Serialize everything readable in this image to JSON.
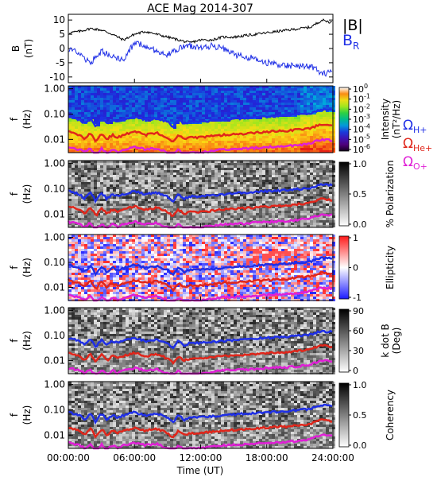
{
  "title": "ACE Mag 2014-307",
  "chart_data": [
    {
      "type": "line",
      "ylabel": "B",
      "yunit": "(nT)",
      "ylim": [
        -12,
        12
      ],
      "yticks": [
        "10",
        "5",
        "0",
        "-5",
        "-10"
      ],
      "yticks_values": [
        10,
        5,
        0,
        -5,
        -10
      ],
      "x_hours": [
        0,
        1,
        2,
        3,
        4,
        5,
        6,
        7,
        8,
        9,
        10,
        11,
        12,
        13,
        14,
        15,
        16,
        17,
        18,
        19,
        20,
        21,
        22,
        23,
        24
      ],
      "series": [
        {
          "name": "|B|",
          "color": "#000000",
          "values": [
            5.5,
            6,
            7,
            6.5,
            5,
            3,
            5,
            6,
            5,
            4,
            3,
            2,
            3,
            3,
            4,
            4,
            4.5,
            5,
            5.5,
            6,
            6.5,
            7,
            7.5,
            10,
            9
          ]
        },
        {
          "name": "B",
          "name_sub": "R",
          "color": "#1f2fe6",
          "values": [
            0,
            -2,
            -5,
            -1,
            -3,
            -4,
            2,
            1,
            -1,
            -2,
            0,
            1,
            0,
            1,
            0,
            -2,
            -3,
            -3.5,
            -5,
            -5.5,
            -6,
            -6.5,
            -6,
            -9,
            -8
          ]
        }
      ],
      "legend": [
        {
          "text": "|B|",
          "sub": "",
          "color": "#000000"
        },
        {
          "text": "B",
          "sub": "R",
          "color": "#1f2fe6"
        }
      ]
    },
    {
      "type": "heatmap",
      "ylabel": "f",
      "yunit": "(Hz)",
      "yticks": [
        "1.00",
        "0.10",
        "0.01"
      ],
      "cbar_type": "rainbow",
      "cbar_label": "Intensity",
      "cbar_label_unit": "(nT²/Hz)",
      "cbar_ticks": [
        {
          "base": "10",
          "exp": "0"
        },
        {
          "base": "10",
          "exp": "-1"
        },
        {
          "base": "10",
          "exp": "-2"
        },
        {
          "base": "10",
          "exp": "-3"
        },
        {
          "base": "10",
          "exp": "-4"
        },
        {
          "base": "10",
          "exp": "-5"
        },
        {
          "base": "10",
          "exp": "-6"
        }
      ],
      "gyro_legend": [
        {
          "sym": "Ω",
          "sub": "H+",
          "color": "#1f2fe6"
        },
        {
          "sym": "Ω",
          "sub": "He+",
          "color": "#e0261b"
        },
        {
          "sym": "Ω",
          "sub": "O+",
          "color": "#e01fd6"
        }
      ]
    },
    {
      "type": "heatmap",
      "ylabel": "f",
      "yunit": "(Hz)",
      "yticks": [
        "1.00",
        "0.10",
        "0.01"
      ],
      "cbar_type": "gray",
      "cbar_label": "% Polarization",
      "cbar_ticks": [
        "1.0",
        "0.5",
        "0.0"
      ]
    },
    {
      "type": "heatmap",
      "ylabel": "f",
      "yunit": "(Hz)",
      "yticks": [
        "1.00",
        "0.10",
        "0.01"
      ],
      "cbar_type": "bwr",
      "cbar_label": "Ellipticity",
      "cbar_ticks": [
        "1",
        "0",
        "-1"
      ]
    },
    {
      "type": "heatmap",
      "ylabel": "f",
      "yunit": "(Hz)",
      "yticks": [
        "1.00",
        "0.10",
        "0.01"
      ],
      "cbar_type": "gray_rev",
      "cbar_label": "k dot B",
      "cbar_label_unit": "(Deg)",
      "cbar_ticks": [
        "90",
        "60",
        "30",
        "0"
      ]
    },
    {
      "type": "heatmap",
      "ylabel": "f",
      "yunit": "(Hz)",
      "yticks": [
        "1.00",
        "0.10",
        "0.01"
      ],
      "cbar_type": "gray",
      "cbar_label": "Coherency",
      "cbar_ticks": [
        "1.0",
        "0.5",
        "0.0"
      ]
    }
  ],
  "gyro_frequencies": {
    "x_hours": [
      0,
      1,
      1.5,
      2,
      2.5,
      3,
      3.5,
      4,
      4.5,
      5,
      6,
      7,
      8,
      9,
      9.5,
      10,
      10.5,
      11,
      12,
      14,
      16,
      18,
      20,
      21,
      22,
      23,
      24
    ],
    "H_plus": [
      0.08,
      0.06,
      0.04,
      0.07,
      0.03,
      0.07,
      0.04,
      0.06,
      0.05,
      0.06,
      0.08,
      0.06,
      0.07,
      0.05,
      0.03,
      0.06,
      0.04,
      0.05,
      0.05,
      0.06,
      0.07,
      0.08,
      0.09,
      0.1,
      0.11,
      0.15,
      0.14
    ],
    "He_plus": [
      0.02,
      0.015,
      0.01,
      0.018,
      0.008,
      0.017,
      0.01,
      0.015,
      0.012,
      0.015,
      0.02,
      0.015,
      0.018,
      0.012,
      0.008,
      0.015,
      0.01,
      0.012,
      0.012,
      0.015,
      0.017,
      0.02,
      0.022,
      0.025,
      0.028,
      0.04,
      0.035
    ],
    "O_plus": [
      0.005,
      0.004,
      0.003,
      0.0045,
      0.002,
      0.0043,
      0.0025,
      0.004,
      0.003,
      0.004,
      0.005,
      0.004,
      0.0045,
      0.003,
      0.002,
      0.004,
      0.0025,
      0.003,
      0.003,
      0.004,
      0.0043,
      0.005,
      0.0055,
      0.006,
      0.007,
      0.01,
      0.009
    ]
  },
  "x_axis": {
    "label": "Time (UT)",
    "ticks": [
      "00:00:00",
      "06:00:00",
      "12:00:00",
      "18:00:00",
      "24:00:00"
    ],
    "tick_hours": [
      0,
      6,
      12,
      18,
      24
    ]
  }
}
